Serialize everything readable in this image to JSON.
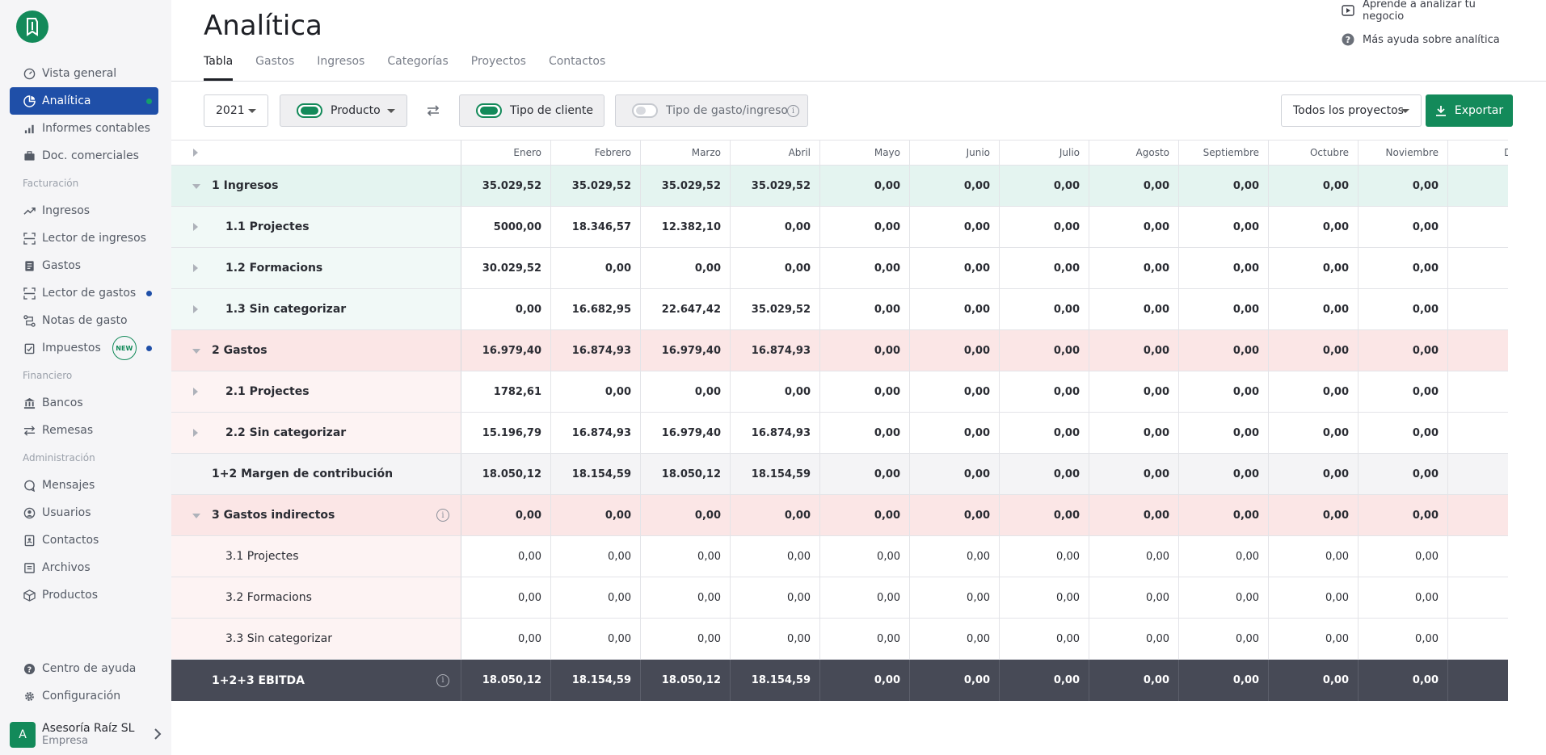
{
  "sidebar": {
    "nav": [
      {
        "label": "Vista general",
        "icon": "gauge-icon",
        "active": false,
        "dot": false
      },
      {
        "label": "Analítica",
        "icon": "pie-chart-icon",
        "active": true,
        "dot": true
      },
      {
        "label": "Informes contables",
        "icon": "bar-chart-icon",
        "active": false,
        "dot": false
      },
      {
        "label": "Doc. comerciales",
        "icon": "briefcase-icon",
        "active": false,
        "dot": false
      }
    ],
    "section_billing": "Facturación",
    "nav_billing": [
      {
        "label": "Ingresos",
        "icon": "trend-up-icon"
      },
      {
        "label": "Lector de ingresos",
        "icon": "scan-icon"
      },
      {
        "label": "Gastos",
        "icon": "receipt-icon"
      },
      {
        "label": "Lector de gastos",
        "icon": "scan-icon"
      },
      {
        "label": "Notas de gasto",
        "icon": "route-icon"
      },
      {
        "label": "Impuestos",
        "icon": "clipboard-icon",
        "badge": "NEW"
      }
    ],
    "section_finance": "Financiero",
    "nav_finance": [
      {
        "label": "Bancos",
        "icon": "bank-icon"
      },
      {
        "label": "Remesas",
        "icon": "transfer-icon"
      }
    ],
    "section_admin": "Administración",
    "nav_admin": [
      {
        "label": "Mensajes",
        "icon": "chat-icon"
      },
      {
        "label": "Usuarios",
        "icon": "user-icon"
      },
      {
        "label": "Contactos",
        "icon": "contact-book-icon"
      },
      {
        "label": "Archivos",
        "icon": "archive-icon"
      },
      {
        "label": "Productos",
        "icon": "box-icon"
      }
    ],
    "bottom": [
      {
        "label": "Centro de ayuda",
        "icon": "help-icon"
      },
      {
        "label": "Configuración",
        "icon": "gear-icon"
      }
    ],
    "company": {
      "avatar": "A",
      "name": "Asesoría Raíz SL",
      "type": "Empresa"
    }
  },
  "header": {
    "title": "Analítica",
    "help_links": [
      "Aprende a analizar tu negocio",
      "Más ayuda sobre analítica"
    ],
    "tabs": [
      "Tabla",
      "Gastos",
      "Ingresos",
      "Categorías",
      "Proyectos",
      "Contactos"
    ]
  },
  "toolbar": {
    "year": "2021",
    "product_label": "Producto",
    "client_type_label": "Tipo de cliente",
    "expense_type_label": "Tipo de gasto/ingreso",
    "projects_label": "Todos los proyectos",
    "export_label": "Exportar"
  },
  "table": {
    "months": [
      "Enero",
      "Febrero",
      "Marzo",
      "Abril",
      "Mayo",
      "Junio",
      "Julio",
      "Agosto",
      "Septiembre",
      "Octubre",
      "Noviembre",
      "Dicie"
    ],
    "rows": [
      {
        "label": "1 Ingresos",
        "type": "inc-h",
        "expander": "down",
        "values": [
          "35.029,52",
          "35.029,52",
          "35.029,52",
          "35.029,52",
          "0,00",
          "0,00",
          "0,00",
          "0,00",
          "0,00",
          "0,00",
          "0,00",
          ""
        ]
      },
      {
        "label": "1.1 Projectes",
        "type": "inc-s",
        "expander": "right",
        "values": [
          "5000,00",
          "18.346,57",
          "12.382,10",
          "0,00",
          "0,00",
          "0,00",
          "0,00",
          "0,00",
          "0,00",
          "0,00",
          "0,00",
          ""
        ]
      },
      {
        "label": "1.2 Formacions",
        "type": "inc-s",
        "expander": "right",
        "values": [
          "30.029,52",
          "0,00",
          "0,00",
          "0,00",
          "0,00",
          "0,00",
          "0,00",
          "0,00",
          "0,00",
          "0,00",
          "0,00",
          ""
        ]
      },
      {
        "label": "1.3 Sin categorizar",
        "type": "inc-s",
        "expander": "right",
        "values": [
          "0,00",
          "16.682,95",
          "22.647,42",
          "35.029,52",
          "0,00",
          "0,00",
          "0,00",
          "0,00",
          "0,00",
          "0,00",
          "0,00",
          ""
        ]
      },
      {
        "label": "2 Gastos",
        "type": "gas-h",
        "expander": "down",
        "values": [
          "16.979,40",
          "16.874,93",
          "16.979,40",
          "16.874,93",
          "0,00",
          "0,00",
          "0,00",
          "0,00",
          "0,00",
          "0,00",
          "0,00",
          ""
        ]
      },
      {
        "label": "2.1 Projectes",
        "type": "gas-s",
        "expander": "right",
        "values": [
          "1782,61",
          "0,00",
          "0,00",
          "0,00",
          "0,00",
          "0,00",
          "0,00",
          "0,00",
          "0,00",
          "0,00",
          "0,00",
          ""
        ]
      },
      {
        "label": "2.2 Sin categorizar",
        "type": "gas-s",
        "expander": "right",
        "values": [
          "15.196,79",
          "16.874,93",
          "16.979,40",
          "16.874,93",
          "0,00",
          "0,00",
          "0,00",
          "0,00",
          "0,00",
          "0,00",
          "0,00",
          ""
        ]
      },
      {
        "label": "1+2 Margen de contribución",
        "type": "mar",
        "expander": "none",
        "values": [
          "18.050,12",
          "18.154,59",
          "18.050,12",
          "18.154,59",
          "0,00",
          "0,00",
          "0,00",
          "0,00",
          "0,00",
          "0,00",
          "0,00",
          ""
        ]
      },
      {
        "label": "3 Gastos indirectos",
        "type": "gas-h",
        "expander": "down",
        "info": true,
        "values": [
          "0,00",
          "0,00",
          "0,00",
          "0,00",
          "0,00",
          "0,00",
          "0,00",
          "0,00",
          "0,00",
          "0,00",
          "0,00",
          ""
        ]
      },
      {
        "label": "3.1 Projectes",
        "type": "ind-s",
        "expander": "none",
        "values": [
          "0,00",
          "0,00",
          "0,00",
          "0,00",
          "0,00",
          "0,00",
          "0,00",
          "0,00",
          "0,00",
          "0,00",
          "0,00",
          ""
        ]
      },
      {
        "label": "3.2 Formacions",
        "type": "ind-s",
        "expander": "none",
        "values": [
          "0,00",
          "0,00",
          "0,00",
          "0,00",
          "0,00",
          "0,00",
          "0,00",
          "0,00",
          "0,00",
          "0,00",
          "0,00",
          ""
        ]
      },
      {
        "label": "3.3 Sin categorizar",
        "type": "ind-s",
        "expander": "none",
        "values": [
          "0,00",
          "0,00",
          "0,00",
          "0,00",
          "0,00",
          "0,00",
          "0,00",
          "0,00",
          "0,00",
          "0,00",
          "0,00",
          ""
        ]
      },
      {
        "label": "1+2+3 EBITDA",
        "type": "ebit",
        "expander": "none",
        "info": true,
        "values": [
          "18.050,12",
          "18.154,59",
          "18.050,12",
          "18.154,59",
          "0,00",
          "0,00",
          "0,00",
          "0,00",
          "0,00",
          "0,00",
          "0,00",
          ""
        ]
      }
    ]
  }
}
